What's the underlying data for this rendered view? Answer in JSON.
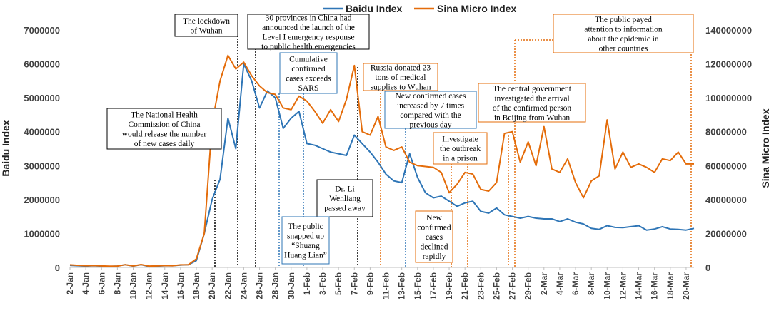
{
  "chart_data": {
    "type": "line",
    "legend": [
      "Baidu Index",
      "Sina Micro Index"
    ],
    "y_left": {
      "label": "Baidu Index",
      "range": [
        0,
        7000000
      ],
      "ticks": [
        "0",
        "1000000",
        "2000000",
        "3000000",
        "4000000",
        "5000000",
        "6000000",
        "7000000"
      ]
    },
    "y_right": {
      "label": "Sina Micro Index",
      "range": [
        0,
        140000000
      ],
      "ticks": [
        "0",
        "20000000",
        "40000000",
        "60000000",
        "80000000",
        "100000000",
        "120000000",
        "140000000"
      ]
    },
    "x_ticks": [
      "2-Jan",
      "4-Jan",
      "6-Jan",
      "8-Jan",
      "10-Jan",
      "12-Jan",
      "14-Jan",
      "16-Jan",
      "18-Jan",
      "20-Jan",
      "22-Jan",
      "24-Jan",
      "26-Jan",
      "28-Jan",
      "30-Jan",
      "1-Feb",
      "3-Feb",
      "5-Feb",
      "7-Feb",
      "9-Feb",
      "11-Feb",
      "13-Feb",
      "15-Feb",
      "17-Feb",
      "19-Feb",
      "21-Feb",
      "23-Feb",
      "25-Feb",
      "27-Feb",
      "29-Feb",
      "2-Mar",
      "4-Mar",
      "6-Mar",
      "8-Mar",
      "10-Mar",
      "12-Mar",
      "14-Mar",
      "16-Mar",
      "18-Mar",
      "20-Mar"
    ],
    "colors": {
      "baidu": "#2E75B6",
      "sina": "#E46C0A",
      "black": "#000000"
    },
    "series": [
      {
        "name": "Baidu Index",
        "axis": "left",
        "values": [
          60000,
          50000,
          40000,
          50000,
          40000,
          30000,
          40000,
          80000,
          40000,
          80000,
          30000,
          40000,
          50000,
          50000,
          70000,
          80000,
          200000,
          1000000,
          2000000,
          2600000,
          4400000,
          3500000,
          6000000,
          5500000,
          4700000,
          5200000,
          5000000,
          4100000,
          4400000,
          4600000,
          3650000,
          3600000,
          3500000,
          3400000,
          3350000,
          3300000,
          3900000,
          3650000,
          3400000,
          3100000,
          2750000,
          2550000,
          2500000,
          3350000,
          2650000,
          2200000,
          2050000,
          2100000,
          1950000,
          1800000,
          1900000,
          1950000,
          1650000,
          1600000,
          1750000,
          1550000,
          1500000,
          1450000,
          1500000,
          1450000,
          1430000,
          1430000,
          1350000,
          1430000,
          1330000,
          1280000,
          1150000,
          1120000,
          1230000,
          1180000,
          1170000,
          1200000,
          1230000,
          1100000,
          1130000,
          1200000,
          1130000,
          1120000,
          1100000,
          1150000
        ]
      },
      {
        "name": "Sina Micro Index",
        "axis": "right",
        "values": [
          1500000,
          1200000,
          1000000,
          1100000,
          900000,
          700000,
          800000,
          1600000,
          900000,
          1700000,
          800000,
          900000,
          1100000,
          1000000,
          1500000,
          1600000,
          5000000,
          20000000,
          85000000,
          110000000,
          125000000,
          117000000,
          121000000,
          113000000,
          107000000,
          103000000,
          102000000,
          94000000,
          93000000,
          101000000,
          98000000,
          92000000,
          85000000,
          93000000,
          86000000,
          99000000,
          119000000,
          80000000,
          78000000,
          89000000,
          71000000,
          69000000,
          71000000,
          62000000,
          60000000,
          59500000,
          59000000,
          56000000,
          44000000,
          49000000,
          56000000,
          55000000,
          46000000,
          45000000,
          50000000,
          79000000,
          80000000,
          62000000,
          74000000,
          60000000,
          83000000,
          58000000,
          56000000,
          64000000,
          50000000,
          41000000,
          51000000,
          54000000,
          87000000,
          58000000,
          68000000,
          59000000,
          61000000,
          59000000,
          56000000,
          64000000,
          63000000,
          68000000,
          61000000,
          61000000
        ]
      }
    ],
    "annotations": [
      {
        "text": [
          "The lockdown",
          "of Wuhan"
        ],
        "border": "black"
      },
      {
        "text": [
          "30 provinces in China had",
          "announced the launch of the",
          "Level I emergency response",
          "to public health emergencies"
        ],
        "border": "black"
      },
      {
        "text": [
          "Cumulative",
          "confirmed",
          "cases exceeds",
          "SARS"
        ],
        "border": "blue"
      },
      {
        "text": [
          "Russia donated 23",
          "tons of medical",
          "supplies to Wuhan"
        ],
        "border": "orange"
      },
      {
        "text": [
          "The public payed",
          "attention to information",
          "about the epidemic in",
          "other countries"
        ],
        "border": "orange"
      },
      {
        "text": [
          "The National Health",
          "Commission of China",
          "would release the number",
          "of new cases daily"
        ],
        "border": "black"
      },
      {
        "text": [
          "New confirmed cases",
          "increased by 7 times",
          "compared with the",
          "previous day"
        ],
        "border": "blue"
      },
      {
        "text": [
          "The central government",
          "investigated the arrival",
          "of the confirmed person",
          "in Beijing from Wuhan"
        ],
        "border": "orange"
      },
      {
        "text": [
          "Investigate",
          "the outbreak",
          "in a prison"
        ],
        "border": "orange"
      },
      {
        "text": [
          "Dr. Li",
          "Wenliang",
          "passed away"
        ],
        "border": "black"
      },
      {
        "text": [
          "The public",
          "snapped up",
          "“Shuang",
          "Huang Lian”"
        ],
        "border": "blue"
      },
      {
        "text": [
          "New",
          "confirmed",
          "cases",
          "declined",
          "rapidly"
        ],
        "border": "orange"
      }
    ]
  }
}
